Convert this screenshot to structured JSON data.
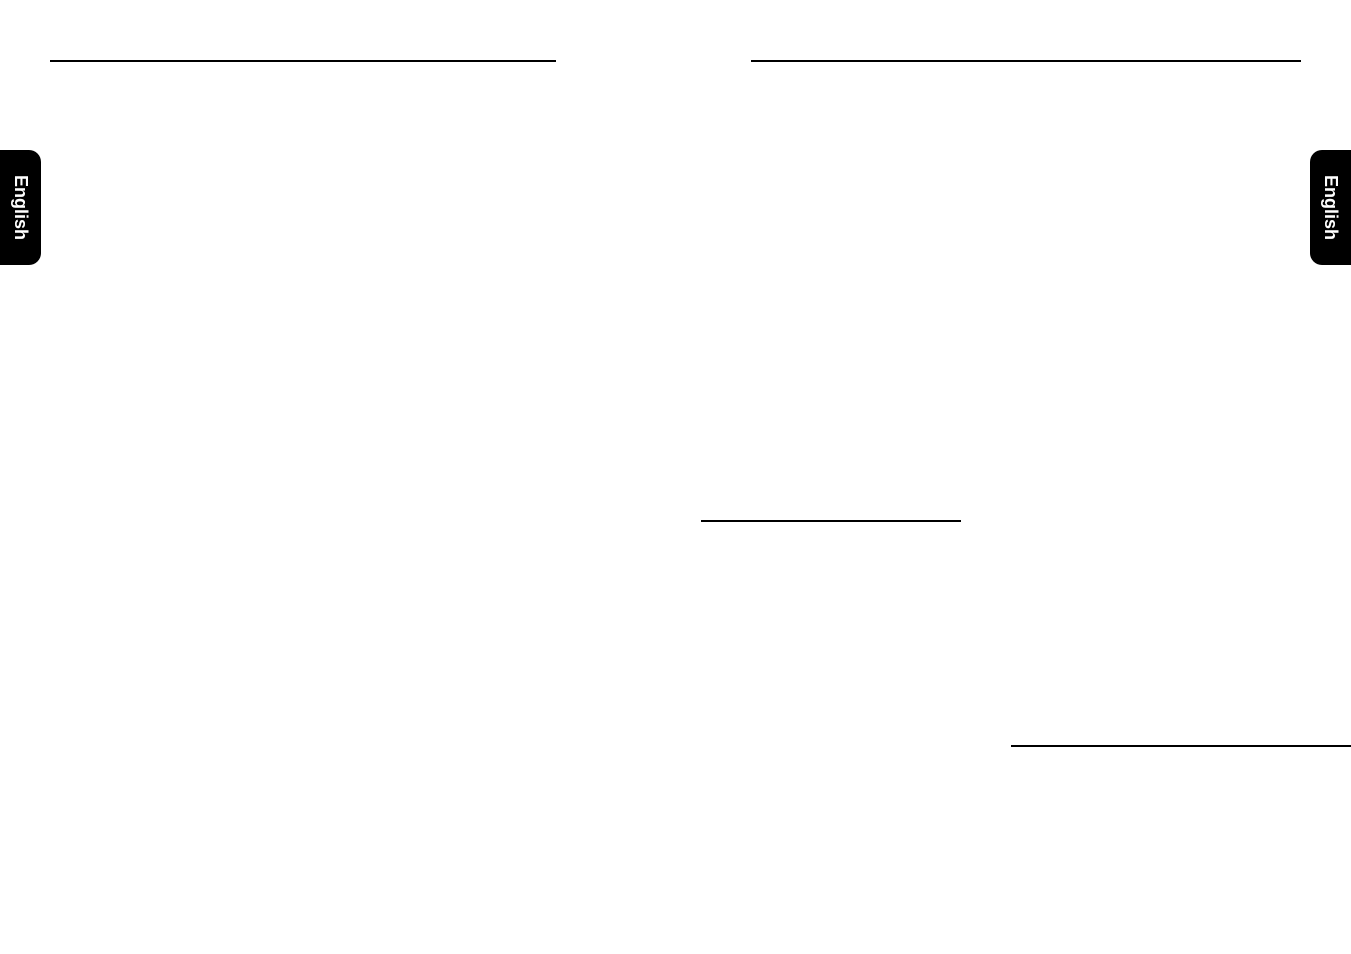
{
  "tab_left": "English",
  "tab_right": "English",
  "left_page": {},
  "right_page": {}
}
